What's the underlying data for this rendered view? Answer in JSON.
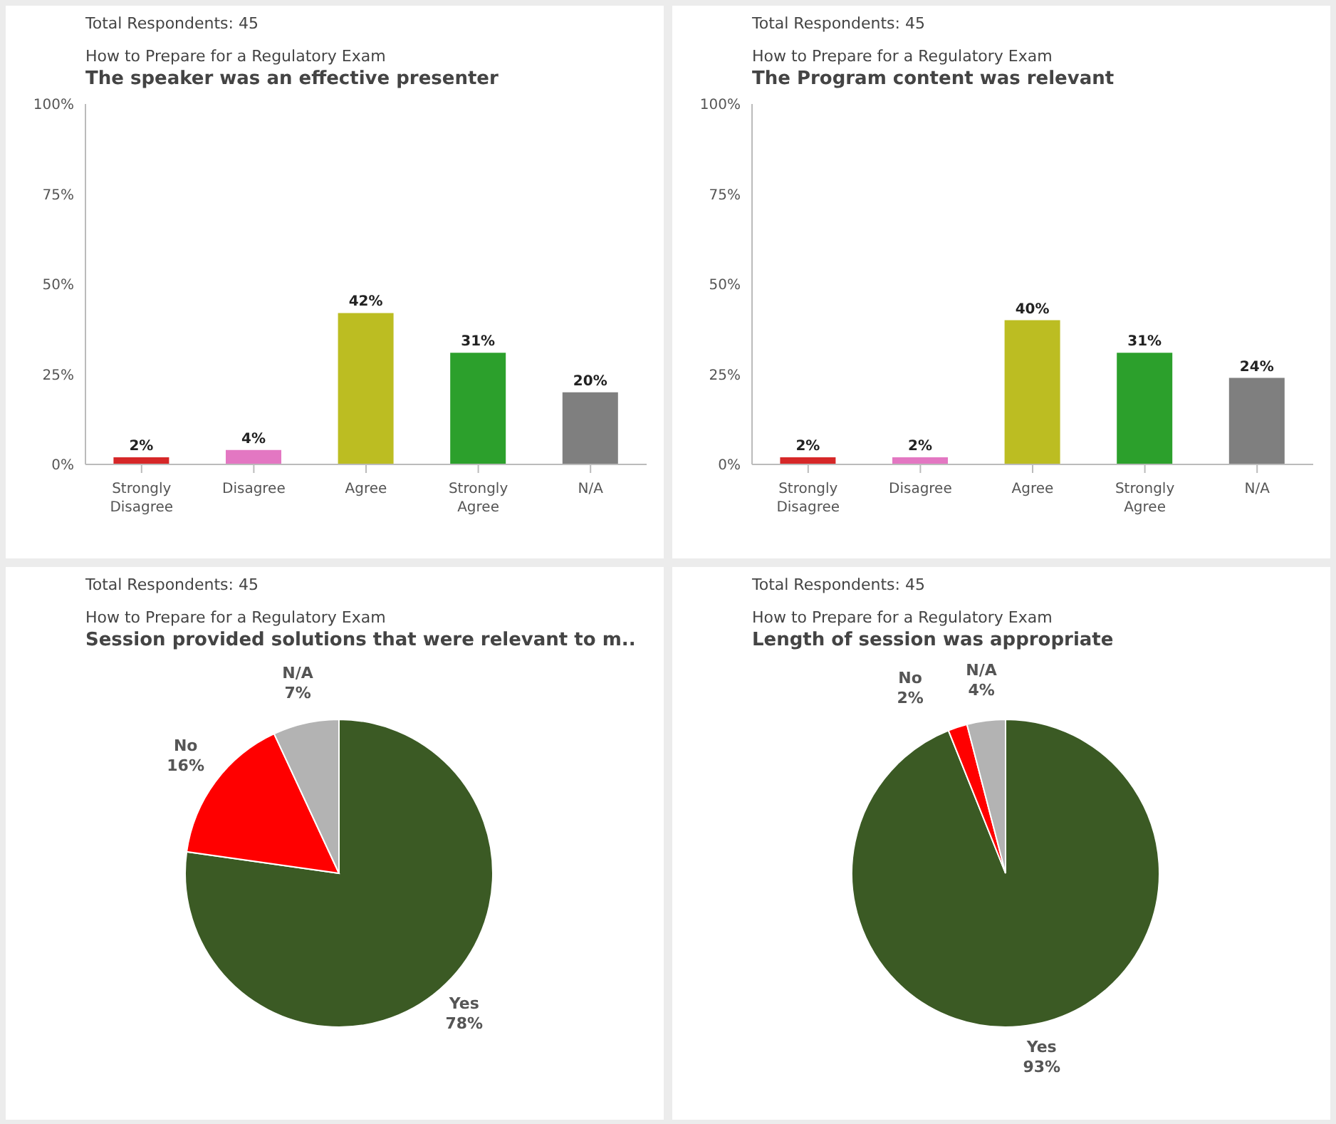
{
  "chart_data": [
    {
      "type": "bar",
      "title": "The speaker was an effective presenter",
      "subtitle": "How to Prepare for a Regulatory Exam",
      "annotations": [
        "Total Respondents: 45"
      ],
      "categories": [
        "Strongly Disagree",
        "Disagree",
        "Agree",
        "Strongly Agree",
        "N/A"
      ],
      "values": [
        2,
        4,
        42,
        31,
        20
      ],
      "value_labels": [
        "2%",
        "4%",
        "42%",
        "31%",
        "20%"
      ],
      "colors": [
        "#d62728",
        "#e377c2",
        "#bcbd22",
        "#2ca02c",
        "#7f7f7f"
      ],
      "ylim": [
        0,
        100
      ],
      "yticks": [
        {
          "value": 0,
          "label": "0%"
        },
        {
          "value": 25,
          "label": "25%"
        },
        {
          "value": 50,
          "label": "50%"
        },
        {
          "value": 75,
          "label": "75%"
        },
        {
          "value": 100,
          "label": "100%"
        }
      ],
      "grid": false,
      "legend": false
    },
    {
      "type": "bar",
      "title": "The Program content was relevant",
      "subtitle": "How to Prepare for a Regulatory Exam",
      "annotations": [
        "Total Respondents: 45"
      ],
      "categories": [
        "Strongly Disagree",
        "Disagree",
        "Agree",
        "Strongly Agree",
        "N/A"
      ],
      "values": [
        2,
        2,
        40,
        31,
        24
      ],
      "value_labels": [
        "2%",
        "2%",
        "40%",
        "31%",
        "24%"
      ],
      "colors": [
        "#d62728",
        "#e377c2",
        "#bcbd22",
        "#2ca02c",
        "#7f7f7f"
      ],
      "ylim": [
        0,
        100
      ],
      "yticks": [
        {
          "value": 0,
          "label": "0%"
        },
        {
          "value": 25,
          "label": "25%"
        },
        {
          "value": 50,
          "label": "50%"
        },
        {
          "value": 75,
          "label": "75%"
        },
        {
          "value": 100,
          "label": "100%"
        }
      ],
      "grid": false,
      "legend": false
    },
    {
      "type": "pie",
      "title": "Session provided solutions that were relevant to m..",
      "subtitle": "How to Prepare for a Regulatory Exam",
      "annotations": [
        "Total Respondents: 45"
      ],
      "categories": [
        "Yes",
        "No",
        "N/A"
      ],
      "values": [
        78,
        16,
        7
      ],
      "value_labels": [
        "78%",
        "16%",
        "7%"
      ],
      "colors": [
        "#3b5a24",
        "#ff0000",
        "#b3b3b3"
      ],
      "legend": false
    },
    {
      "type": "pie",
      "title": "Length of session was appropriate",
      "subtitle": "How to Prepare for a Regulatory Exam",
      "annotations": [
        "Total Respondents: 45"
      ],
      "categories": [
        "Yes",
        "No",
        "N/A"
      ],
      "values": [
        93,
        2,
        4
      ],
      "value_labels": [
        "93%",
        "2%",
        "4%"
      ],
      "colors": [
        "#3b5a24",
        "#ff0000",
        "#b3b3b3"
      ],
      "legend": false
    }
  ]
}
